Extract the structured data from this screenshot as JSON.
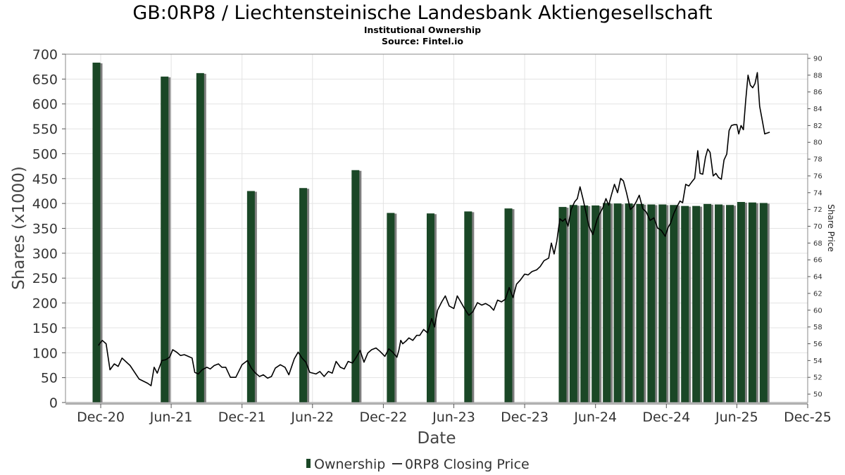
{
  "chart_data": {
    "type": "bar+line",
    "title": "GB:0RP8 / Liechtensteinische Landesbank Aktiengesellschaft",
    "subtitle_lines": [
      "Institutional Ownership",
      "Source: Fintel.io"
    ],
    "xlabel": "Date",
    "ylabel": "Shares (x1000)",
    "y2label": "Share Price",
    "xlim": [
      "2020-09-01",
      "2025-12-01"
    ],
    "ylim": [
      0,
      700
    ],
    "y2lim": [
      49,
      90.5
    ],
    "x_ticks": [
      {
        "label": "Dec-20",
        "date": "2020-12-01"
      },
      {
        "label": "Jun-21",
        "date": "2021-06-01"
      },
      {
        "label": "Dec-21",
        "date": "2021-12-01"
      },
      {
        "label": "Jun-22",
        "date": "2022-06-01"
      },
      {
        "label": "Dec-22",
        "date": "2022-12-01"
      },
      {
        "label": "Jun-23",
        "date": "2023-06-01"
      },
      {
        "label": "Dec-23",
        "date": "2023-12-01"
      },
      {
        "label": "Jun-24",
        "date": "2024-06-01"
      },
      {
        "label": "Dec-24",
        "date": "2024-12-01"
      },
      {
        "label": "Jun-25",
        "date": "2025-06-01"
      },
      {
        "label": "Dec-25",
        "date": "2025-12-01"
      }
    ],
    "y_ticks": [
      0,
      50,
      100,
      150,
      200,
      250,
      300,
      350,
      400,
      450,
      500,
      550,
      600,
      650,
      700
    ],
    "y2_ticks": [
      50,
      52,
      54,
      56,
      58,
      60,
      62,
      64,
      66,
      68,
      70,
      72,
      74,
      76,
      78,
      80,
      82,
      84,
      86,
      88,
      90
    ],
    "grid": true,
    "legend_position": "bottom-center",
    "legend": [
      {
        "label": "Ownership",
        "kind": "bar"
      },
      {
        "label": "0RP8 Closing Price",
        "kind": "line"
      }
    ],
    "colors": {
      "bar": "#1a4726",
      "bar_shadow": "#7f7f7f",
      "line": "#000000",
      "grid": "#e3e3e3",
      "axis": "#555555"
    },
    "ownership": [
      {
        "date": "2020-11-20",
        "value": 683
      },
      {
        "date": "2021-05-15",
        "value": 655
      },
      {
        "date": "2021-08-15",
        "value": 662
      },
      {
        "date": "2021-12-24",
        "value": 425
      },
      {
        "date": "2022-05-08",
        "value": 431
      },
      {
        "date": "2022-09-20",
        "value": 467
      },
      {
        "date": "2022-12-20",
        "value": 381
      },
      {
        "date": "2023-04-02",
        "value": 380
      },
      {
        "date": "2023-07-08",
        "value": 384
      },
      {
        "date": "2023-10-20",
        "value": 390
      },
      {
        "date": "2024-03-08",
        "value": 393
      },
      {
        "date": "2024-04-05",
        "value": 397
      },
      {
        "date": "2024-05-03",
        "value": 396
      },
      {
        "date": "2024-06-01",
        "value": 396
      },
      {
        "date": "2024-06-30",
        "value": 401
      },
      {
        "date": "2024-07-28",
        "value": 400
      },
      {
        "date": "2024-08-26",
        "value": 400
      },
      {
        "date": "2024-09-24",
        "value": 399
      },
      {
        "date": "2024-10-23",
        "value": 398
      },
      {
        "date": "2024-11-21",
        "value": 398
      },
      {
        "date": "2024-12-20",
        "value": 397
      },
      {
        "date": "2025-01-18",
        "value": 395
      },
      {
        "date": "2025-02-16",
        "value": 395
      },
      {
        "date": "2025-03-17",
        "value": 399
      },
      {
        "date": "2025-04-15",
        "value": 398
      },
      {
        "date": "2025-05-14",
        "value": 397
      },
      {
        "date": "2025-06-12",
        "value": 403
      },
      {
        "date": "2025-07-11",
        "value": 402
      },
      {
        "date": "2025-08-09",
        "value": 401
      }
    ],
    "price": [
      {
        "date": "2020-11-25",
        "value": 55.8
      },
      {
        "date": "2020-12-05",
        "value": 56.4
      },
      {
        "date": "2020-12-15",
        "value": 56.0
      },
      {
        "date": "2020-12-25",
        "value": 52.9
      },
      {
        "date": "2021-01-05",
        "value": 53.6
      },
      {
        "date": "2021-01-15",
        "value": 53.3
      },
      {
        "date": "2021-01-25",
        "value": 54.3
      },
      {
        "date": "2021-02-15",
        "value": 53.4
      },
      {
        "date": "2021-03-10",
        "value": 51.8
      },
      {
        "date": "2021-04-01",
        "value": 51.3
      },
      {
        "date": "2021-04-10",
        "value": 51.0
      },
      {
        "date": "2021-04-18",
        "value": 53.2
      },
      {
        "date": "2021-04-26",
        "value": 52.5
      },
      {
        "date": "2021-05-08",
        "value": 54.0
      },
      {
        "date": "2021-05-18",
        "value": 54.1
      },
      {
        "date": "2021-05-28",
        "value": 54.4
      },
      {
        "date": "2021-06-05",
        "value": 55.3
      },
      {
        "date": "2021-06-15",
        "value": 55.0
      },
      {
        "date": "2021-06-25",
        "value": 54.6
      },
      {
        "date": "2021-07-05",
        "value": 54.7
      },
      {
        "date": "2021-07-15",
        "value": 54.5
      },
      {
        "date": "2021-07-25",
        "value": 54.3
      },
      {
        "date": "2021-08-01",
        "value": 52.6
      },
      {
        "date": "2021-08-10",
        "value": 52.4
      },
      {
        "date": "2021-08-20",
        "value": 52.9
      },
      {
        "date": "2021-09-01",
        "value": 53.2
      },
      {
        "date": "2021-09-10",
        "value": 53.0
      },
      {
        "date": "2021-09-20",
        "value": 53.4
      },
      {
        "date": "2021-10-01",
        "value": 53.6
      },
      {
        "date": "2021-10-10",
        "value": 53.2
      },
      {
        "date": "2021-10-20",
        "value": 53.2
      },
      {
        "date": "2021-11-01",
        "value": 52.0
      },
      {
        "date": "2021-11-15",
        "value": 52.0
      },
      {
        "date": "2021-12-01",
        "value": 53.5
      },
      {
        "date": "2021-12-15",
        "value": 54.0
      },
      {
        "date": "2021-12-25",
        "value": 53.1
      },
      {
        "date": "2022-01-05",
        "value": 52.5
      },
      {
        "date": "2022-01-15",
        "value": 52.1
      },
      {
        "date": "2022-01-25",
        "value": 52.3
      },
      {
        "date": "2022-02-05",
        "value": 51.9
      },
      {
        "date": "2022-02-15",
        "value": 52.1
      },
      {
        "date": "2022-02-25",
        "value": 53.1
      },
      {
        "date": "2022-03-10",
        "value": 53.5
      },
      {
        "date": "2022-03-22",
        "value": 53.2
      },
      {
        "date": "2022-04-01",
        "value": 52.3
      },
      {
        "date": "2022-04-15",
        "value": 54.2
      },
      {
        "date": "2022-04-25",
        "value": 55.0
      },
      {
        "date": "2022-05-05",
        "value": 54.3
      },
      {
        "date": "2022-05-15",
        "value": 53.8
      },
      {
        "date": "2022-05-25",
        "value": 52.6
      },
      {
        "date": "2022-06-10",
        "value": 52.4
      },
      {
        "date": "2022-06-20",
        "value": 52.7
      },
      {
        "date": "2022-07-01",
        "value": 52.1
      },
      {
        "date": "2022-07-12",
        "value": 52.7
      },
      {
        "date": "2022-07-22",
        "value": 52.5
      },
      {
        "date": "2022-08-01",
        "value": 53.9
      },
      {
        "date": "2022-08-12",
        "value": 53.2
      },
      {
        "date": "2022-08-22",
        "value": 53.0
      },
      {
        "date": "2022-09-01",
        "value": 53.9
      },
      {
        "date": "2022-09-12",
        "value": 53.7
      },
      {
        "date": "2022-09-22",
        "value": 54.4
      },
      {
        "date": "2022-10-02",
        "value": 55.2
      },
      {
        "date": "2022-10-12",
        "value": 53.8
      },
      {
        "date": "2022-10-22",
        "value": 54.9
      },
      {
        "date": "2022-11-01",
        "value": 55.3
      },
      {
        "date": "2022-11-12",
        "value": 55.5
      },
      {
        "date": "2022-11-22",
        "value": 55.1
      },
      {
        "date": "2022-12-05",
        "value": 54.5
      },
      {
        "date": "2022-12-15",
        "value": 55.4
      },
      {
        "date": "2022-12-25",
        "value": 55.0
      },
      {
        "date": "2023-01-05",
        "value": 54.4
      },
      {
        "date": "2023-01-10",
        "value": 55.2
      },
      {
        "date": "2023-01-15",
        "value": 56.4
      },
      {
        "date": "2023-01-20",
        "value": 56.0
      },
      {
        "date": "2023-01-28",
        "value": 56.3
      },
      {
        "date": "2023-02-05",
        "value": 56.7
      },
      {
        "date": "2023-02-15",
        "value": 56.4
      },
      {
        "date": "2023-02-25",
        "value": 57.0
      },
      {
        "date": "2023-03-05",
        "value": 57.0
      },
      {
        "date": "2023-03-15",
        "value": 57.7
      },
      {
        "date": "2023-03-25",
        "value": 57.3
      },
      {
        "date": "2023-04-05",
        "value": 59.0
      },
      {
        "date": "2023-04-12",
        "value": 58.0
      },
      {
        "date": "2023-04-20",
        "value": 60.0
      },
      {
        "date": "2023-05-01",
        "value": 61.0
      },
      {
        "date": "2023-05-10",
        "value": 61.7
      },
      {
        "date": "2023-05-20",
        "value": 60.5
      },
      {
        "date": "2023-06-01",
        "value": 60.2
      },
      {
        "date": "2023-06-10",
        "value": 61.7
      },
      {
        "date": "2023-06-20",
        "value": 60.9
      },
      {
        "date": "2023-07-01",
        "value": 60.0
      },
      {
        "date": "2023-07-10",
        "value": 59.4
      },
      {
        "date": "2023-07-20",
        "value": 59.8
      },
      {
        "date": "2023-08-01",
        "value": 60.9
      },
      {
        "date": "2023-08-12",
        "value": 60.6
      },
      {
        "date": "2023-08-22",
        "value": 60.8
      },
      {
        "date": "2023-09-02",
        "value": 60.5
      },
      {
        "date": "2023-09-12",
        "value": 60.0
      },
      {
        "date": "2023-09-22",
        "value": 61.2
      },
      {
        "date": "2023-10-02",
        "value": 61.0
      },
      {
        "date": "2023-10-12",
        "value": 61.3
      },
      {
        "date": "2023-10-22",
        "value": 62.7
      },
      {
        "date": "2023-11-01",
        "value": 61.5
      },
      {
        "date": "2023-11-10",
        "value": 63.1
      },
      {
        "date": "2023-11-20",
        "value": 63.6
      },
      {
        "date": "2023-12-01",
        "value": 64.3
      },
      {
        "date": "2023-12-10",
        "value": 64.2
      },
      {
        "date": "2023-12-20",
        "value": 64.6
      },
      {
        "date": "2024-01-01",
        "value": 64.8
      },
      {
        "date": "2024-01-10",
        "value": 65.2
      },
      {
        "date": "2024-01-20",
        "value": 65.9
      },
      {
        "date": "2024-02-01",
        "value": 66.2
      },
      {
        "date": "2024-02-08",
        "value": 68.0
      },
      {
        "date": "2024-02-15",
        "value": 66.7
      },
      {
        "date": "2024-02-22",
        "value": 68.2
      },
      {
        "date": "2024-03-01",
        "value": 70.9
      },
      {
        "date": "2024-03-08",
        "value": 70.6
      },
      {
        "date": "2024-03-15",
        "value": 70.9
      },
      {
        "date": "2024-03-22",
        "value": 70.0
      },
      {
        "date": "2024-03-30",
        "value": 72.0
      },
      {
        "date": "2024-04-08",
        "value": 72.9
      },
      {
        "date": "2024-04-15",
        "value": 73.3
      },
      {
        "date": "2024-04-22",
        "value": 74.7
      },
      {
        "date": "2024-04-30",
        "value": 73.2
      },
      {
        "date": "2024-05-08",
        "value": 71.5
      },
      {
        "date": "2024-05-15",
        "value": 70.0
      },
      {
        "date": "2024-05-25",
        "value": 69.0
      },
      {
        "date": "2024-06-05",
        "value": 70.8
      },
      {
        "date": "2024-06-12",
        "value": 71.5
      },
      {
        "date": "2024-06-20",
        "value": 72.2
      },
      {
        "date": "2024-06-28",
        "value": 73.3
      },
      {
        "date": "2024-07-05",
        "value": 72.5
      },
      {
        "date": "2024-07-12",
        "value": 73.7
      },
      {
        "date": "2024-07-20",
        "value": 75.0
      },
      {
        "date": "2024-07-28",
        "value": 74.0
      },
      {
        "date": "2024-08-05",
        "value": 75.7
      },
      {
        "date": "2024-08-12",
        "value": 75.4
      },
      {
        "date": "2024-08-20",
        "value": 74.0
      },
      {
        "date": "2024-08-30",
        "value": 72.0
      },
      {
        "date": "2024-09-08",
        "value": 72.4
      },
      {
        "date": "2024-09-15",
        "value": 73.0
      },
      {
        "date": "2024-09-22",
        "value": 73.7
      },
      {
        "date": "2024-10-01",
        "value": 72.1
      },
      {
        "date": "2024-10-10",
        "value": 71.7
      },
      {
        "date": "2024-10-20",
        "value": 70.7
      },
      {
        "date": "2024-10-30",
        "value": 71.0
      },
      {
        "date": "2024-11-08",
        "value": 69.8
      },
      {
        "date": "2024-11-18",
        "value": 69.5
      },
      {
        "date": "2024-11-28",
        "value": 68.8
      },
      {
        "date": "2024-12-05",
        "value": 69.8
      },
      {
        "date": "2024-12-12",
        "value": 70.4
      },
      {
        "date": "2024-12-20",
        "value": 71.5
      },
      {
        "date": "2024-12-28",
        "value": 72.3
      },
      {
        "date": "2025-01-05",
        "value": 73.0
      },
      {
        "date": "2025-01-12",
        "value": 72.8
      },
      {
        "date": "2025-01-20",
        "value": 75.0
      },
      {
        "date": "2025-01-28",
        "value": 74.8
      },
      {
        "date": "2025-02-05",
        "value": 75.3
      },
      {
        "date": "2025-02-12",
        "value": 75.7
      },
      {
        "date": "2025-02-20",
        "value": 79.0
      },
      {
        "date": "2025-02-26",
        "value": 76.3
      },
      {
        "date": "2025-03-05",
        "value": 76.2
      },
      {
        "date": "2025-03-12",
        "value": 78.2
      },
      {
        "date": "2025-03-18",
        "value": 79.2
      },
      {
        "date": "2025-03-24",
        "value": 78.8
      },
      {
        "date": "2025-04-01",
        "value": 76.0
      },
      {
        "date": "2025-04-08",
        "value": 76.3
      },
      {
        "date": "2025-04-15",
        "value": 75.8
      },
      {
        "date": "2025-04-22",
        "value": 75.6
      },
      {
        "date": "2025-04-29",
        "value": 77.9
      },
      {
        "date": "2025-05-06",
        "value": 78.6
      },
      {
        "date": "2025-05-12",
        "value": 81.4
      },
      {
        "date": "2025-05-18",
        "value": 82.0
      },
      {
        "date": "2025-05-25",
        "value": 82.1
      },
      {
        "date": "2025-06-01",
        "value": 82.1
      },
      {
        "date": "2025-06-06",
        "value": 81.0
      },
      {
        "date": "2025-06-12",
        "value": 82.0
      },
      {
        "date": "2025-06-18",
        "value": 81.5
      },
      {
        "date": "2025-06-24",
        "value": 85.0
      },
      {
        "date": "2025-06-30",
        "value": 88.0
      },
      {
        "date": "2025-07-06",
        "value": 86.8
      },
      {
        "date": "2025-07-12",
        "value": 86.5
      },
      {
        "date": "2025-07-18",
        "value": 87.0
      },
      {
        "date": "2025-07-24",
        "value": 88.3
      },
      {
        "date": "2025-07-30",
        "value": 84.3
      },
      {
        "date": "2025-08-05",
        "value": 82.8
      },
      {
        "date": "2025-08-12",
        "value": 81.0
      },
      {
        "date": "2025-08-25",
        "value": 81.2
      }
    ]
  }
}
